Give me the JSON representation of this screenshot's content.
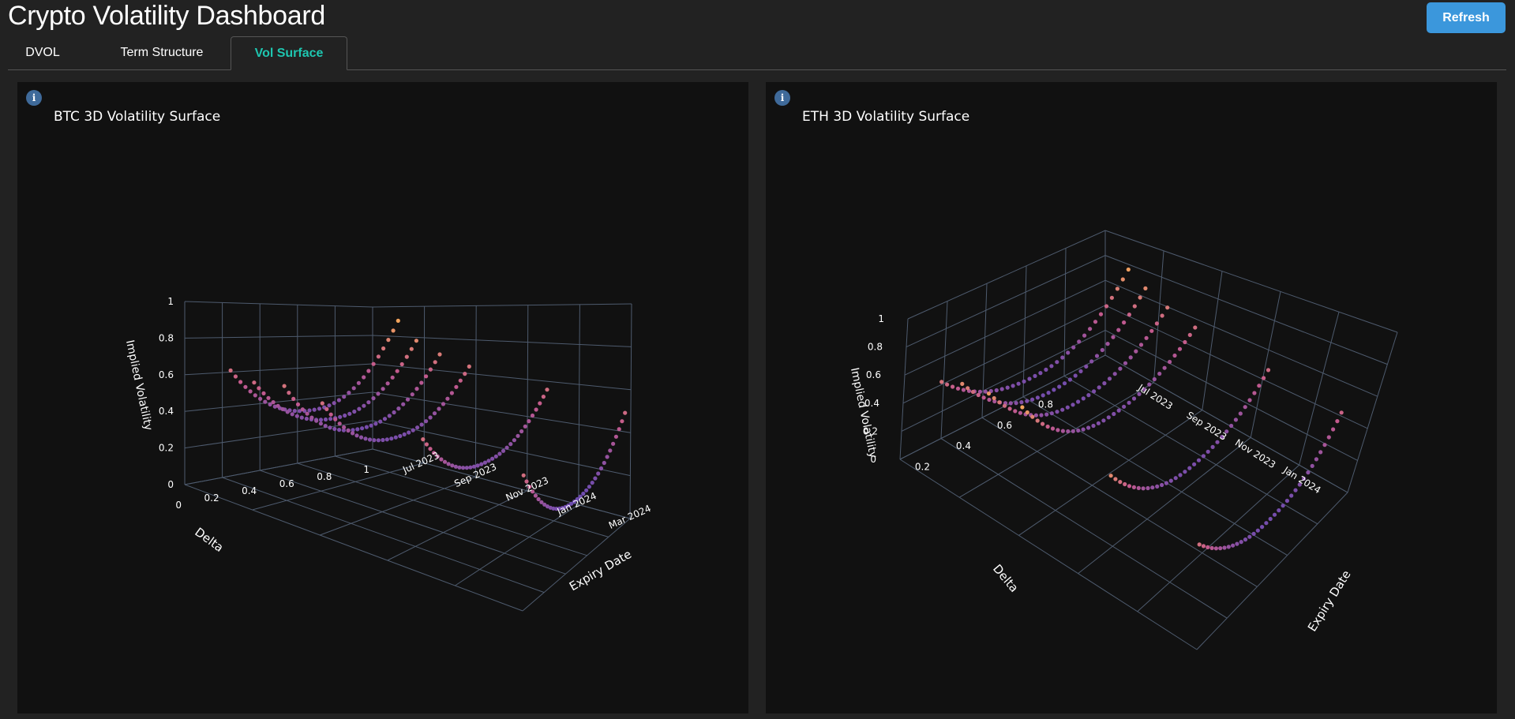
{
  "header": {
    "title": "Crypto Volatility Dashboard",
    "refresh_label": "Refresh"
  },
  "tabs": [
    {
      "label": "DVOL",
      "active": false
    },
    {
      "label": "Term Structure",
      "active": false
    },
    {
      "label": "Vol Surface",
      "active": true
    }
  ],
  "icons": {
    "info": "info-icon"
  },
  "colors": {
    "accent_tab": "#1ec6b0",
    "refresh_button": "#3b97dc",
    "panel_bg": "#111111",
    "grid": "#4e5b6e",
    "point_low": "#6a4bb0",
    "point_mid": "#c45a8d",
    "point_high": "#f2a35c"
  },
  "chart_data": [
    {
      "type": "scatter3d",
      "title": "BTC 3D Volatility Surface",
      "info_label": "i",
      "xlabel": "Delta",
      "ylabel": "Expiry Date",
      "zlabel": "Implied Volatility",
      "x_ticks": [
        "0",
        "0.2",
        "0.4",
        "0.6",
        "0.8",
        "1"
      ],
      "y_ticks": [
        "Jul 2023",
        "Sep 2023",
        "Nov 2023",
        "Jan 2024",
        "Mar 2024"
      ],
      "z_ticks": [
        "0",
        "0.2",
        "0.4",
        "0.6",
        "0.8",
        "1"
      ],
      "xlim": [
        0,
        1
      ],
      "ylim": [
        "Jun 2023",
        "Apr 2024"
      ],
      "zlim": [
        0,
        1
      ],
      "series": [
        {
          "expiry": "2023-07-07",
          "iv_low_delta": 0.7,
          "iv_min": 0.41,
          "iv_high_delta": 0.9
        },
        {
          "expiry": "2023-07-28",
          "iv_low_delta": 0.68,
          "iv_min": 0.4,
          "iv_high_delta": 0.8
        },
        {
          "expiry": "2023-08-25",
          "iv_low_delta": 0.72,
          "iv_min": 0.39,
          "iv_high_delta": 0.75
        },
        {
          "expiry": "2023-09-29",
          "iv_low_delta": 0.7,
          "iv_min": 0.4,
          "iv_high_delta": 0.72
        },
        {
          "expiry": "2023-12-29",
          "iv_low_delta": 0.7,
          "iv_min": 0.42,
          "iv_high_delta": 0.7
        },
        {
          "expiry": "2024-03-29",
          "iv_low_delta": 0.7,
          "iv_min": 0.36,
          "iv_high_delta": 0.68
        }
      ]
    },
    {
      "type": "scatter3d",
      "title": "ETH 3D Volatility Surface",
      "info_label": "i",
      "xlabel": "Delta",
      "ylabel": "Expiry Date",
      "zlabel": "Implied Volatility",
      "x_ticks": [
        "0.2",
        "0.4",
        "0.6",
        "0.8"
      ],
      "y_ticks": [
        "Jul 2023",
        "Sep 2023",
        "Nov 2023",
        "Jan 2024"
      ],
      "z_ticks": [
        "0",
        "0.2",
        "0.4",
        "0.6",
        "0.8",
        "1"
      ],
      "xlim": [
        0,
        1
      ],
      "ylim": [
        "Jun 2023",
        "Apr 2024"
      ],
      "zlim": [
        0,
        1
      ],
      "series": [
        {
          "expiry": "2023-07-07",
          "iv_low_delta": 0.72,
          "iv_min": 0.4,
          "iv_high_delta": 0.88
        },
        {
          "expiry": "2023-07-28",
          "iv_low_delta": 0.8,
          "iv_min": 0.38,
          "iv_high_delta": 0.8
        },
        {
          "expiry": "2023-08-25",
          "iv_low_delta": 0.85,
          "iv_min": 0.4,
          "iv_high_delta": 0.74
        },
        {
          "expiry": "2023-09-29",
          "iv_low_delta": 0.9,
          "iv_min": 0.42,
          "iv_high_delta": 0.7
        },
        {
          "expiry": "2023-12-29",
          "iv_low_delta": 0.8,
          "iv_min": 0.4,
          "iv_high_delta": 0.68
        },
        {
          "expiry": "2024-03-29",
          "iv_low_delta": 0.7,
          "iv_min": 0.38,
          "iv_high_delta": 0.66
        }
      ]
    }
  ]
}
